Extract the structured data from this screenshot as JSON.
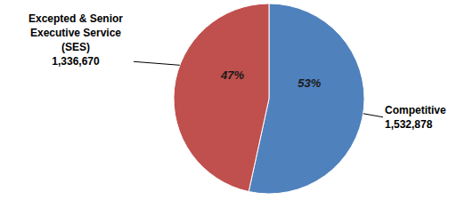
{
  "chart_data": {
    "type": "pie",
    "categories": [
      "Competitive",
      "Excepted & Senior Executive Service (SES)"
    ],
    "values": [
      1532878,
      1336670
    ],
    "value_labels": [
      "1,532,878",
      "1,336,670"
    ],
    "percentages": [
      53,
      47
    ],
    "percentage_labels": [
      "53%",
      "47%"
    ],
    "colors": [
      "#4f81bd",
      "#c0504d"
    ],
    "data_labels": true
  }
}
